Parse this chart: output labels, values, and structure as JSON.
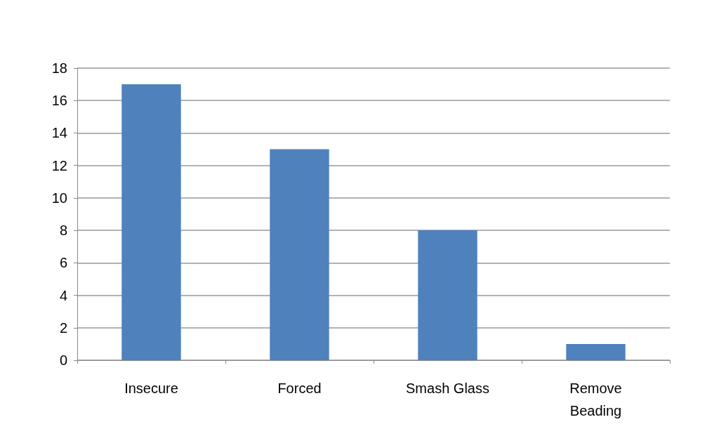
{
  "chart_data": {
    "type": "bar",
    "categories": [
      "Insecure",
      "Forced",
      "Smash Glass",
      "Remove\nBeading"
    ],
    "values": [
      17,
      13,
      8,
      1
    ],
    "color": "#4f81bd",
    "ylim": [
      0,
      18
    ],
    "yticks": [
      0,
      2,
      4,
      6,
      8,
      10,
      12,
      14,
      16,
      18
    ],
    "grid": "y"
  }
}
